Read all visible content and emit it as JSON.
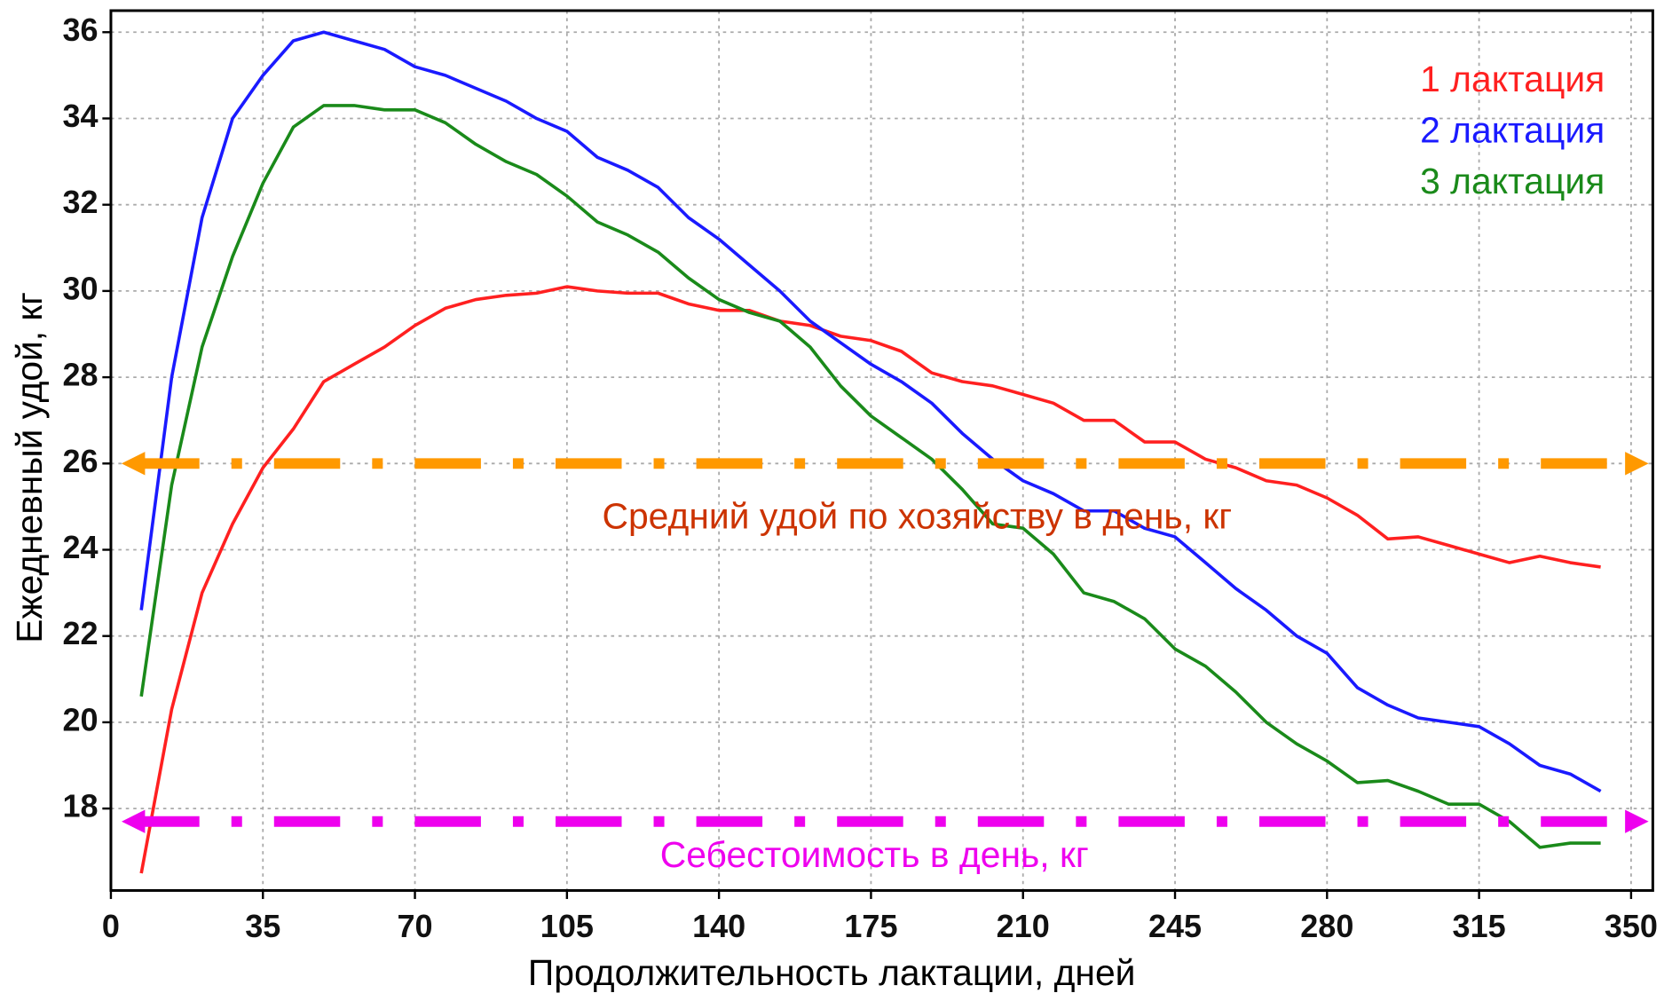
{
  "chart_data": {
    "type": "line",
    "x_label": "Продолжительность лактации, дней",
    "y_label": "Ежедневный удой, кг",
    "xlim": [
      0,
      355
    ],
    "ylim": [
      16.1,
      36.5
    ],
    "xticks": [
      0,
      35,
      70,
      105,
      140,
      175,
      210,
      245,
      280,
      315,
      350
    ],
    "yticks": [
      18,
      20,
      22,
      24,
      26,
      28,
      30,
      32,
      34,
      36
    ],
    "grid": true,
    "legend": "upper right",
    "x": [
      7,
      14,
      21,
      28,
      35,
      42,
      49,
      56,
      63,
      70,
      77,
      84,
      91,
      98,
      105,
      112,
      119,
      126,
      133,
      140,
      147,
      154,
      161,
      168,
      175,
      182,
      189,
      196,
      203,
      210,
      217,
      224,
      231,
      238,
      245,
      252,
      259,
      266,
      273,
      280,
      287,
      294,
      301,
      308,
      315,
      322,
      329,
      336,
      343
    ],
    "series": [
      {
        "name": "1 лактация",
        "color": "#ff2020",
        "values": [
          16.5,
          20.3,
          23.0,
          24.6,
          25.9,
          26.8,
          27.9,
          28.3,
          28.7,
          29.2,
          29.6,
          29.8,
          29.9,
          29.95,
          30.1,
          30.0,
          29.95,
          29.95,
          29.7,
          29.55,
          29.55,
          29.3,
          29.2,
          28.95,
          28.85,
          28.6,
          28.1,
          27.9,
          27.8,
          27.6,
          27.4,
          27.0,
          27.0,
          26.5,
          26.5,
          26.1,
          25.9,
          25.6,
          25.5,
          25.2,
          24.8,
          24.25,
          24.3,
          24.1,
          23.9,
          23.7,
          23.85,
          23.7,
          23.6
        ]
      },
      {
        "name": "2 лактация",
        "color": "#1a1aff",
        "values": [
          22.6,
          28.0,
          31.7,
          34.0,
          35.0,
          35.8,
          36.0,
          35.8,
          35.6,
          35.2,
          35.0,
          34.7,
          34.4,
          34.0,
          33.7,
          33.1,
          32.8,
          32.4,
          31.7,
          31.2,
          30.6,
          30.0,
          29.3,
          28.8,
          28.3,
          27.9,
          27.4,
          26.7,
          26.1,
          25.6,
          25.3,
          24.9,
          24.9,
          24.5,
          24.3,
          23.7,
          23.1,
          22.6,
          22.0,
          21.6,
          20.8,
          20.4,
          20.1,
          20.0,
          19.9,
          19.5,
          19.0,
          18.8,
          18.4
        ]
      },
      {
        "name": "3 лактация",
        "color": "#1a8a1a",
        "values": [
          20.6,
          25.5,
          28.7,
          30.8,
          32.5,
          33.8,
          34.3,
          34.3,
          34.2,
          34.2,
          33.9,
          33.4,
          33.0,
          32.7,
          32.2,
          31.6,
          31.3,
          30.9,
          30.3,
          29.8,
          29.5,
          29.3,
          28.7,
          27.8,
          27.1,
          26.6,
          26.1,
          25.4,
          24.6,
          24.5,
          23.9,
          23.0,
          22.8,
          22.4,
          21.7,
          21.3,
          20.7,
          20.0,
          19.5,
          19.1,
          18.6,
          18.65,
          18.4,
          18.1,
          18.1,
          17.7,
          17.1,
          17.2,
          17.2
        ]
      }
    ],
    "reference_lines": [
      {
        "value": 26,
        "color": "#ff9900",
        "label": "Средний удой по хозяйству в день, кг",
        "label_color": "#cc3300"
      },
      {
        "value": 17.7,
        "color": "#ee00ee",
        "label": "Себестоимость в день, кг",
        "label_color": "#ee00ee"
      }
    ]
  }
}
